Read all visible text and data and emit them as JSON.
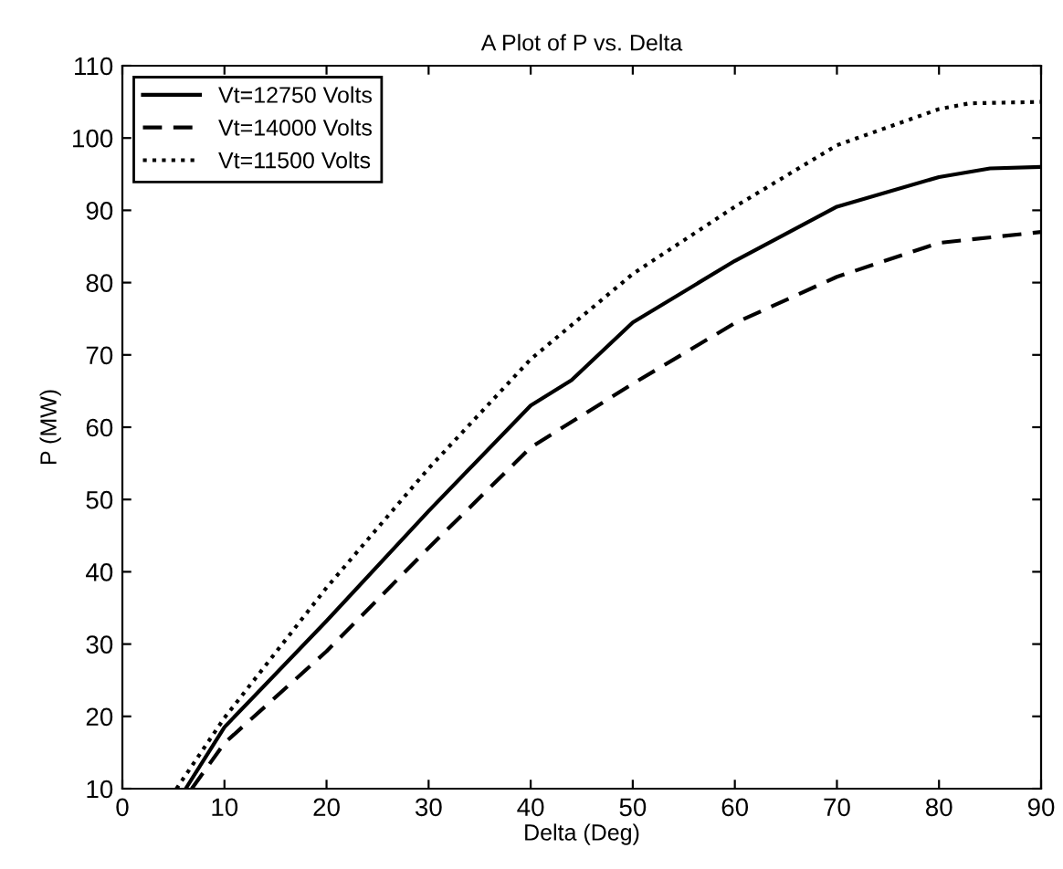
{
  "chart_data": {
    "type": "line",
    "title": "A Plot of P vs. Delta",
    "xlabel": "Delta (Deg)",
    "ylabel": "P (MW)",
    "xlim": [
      0,
      90
    ],
    "xticks": [
      0,
      10,
      20,
      30,
      40,
      50,
      60,
      70,
      80,
      90
    ],
    "ylim": [
      10,
      110
    ],
    "yticks": [
      10,
      20,
      30,
      40,
      50,
      60,
      70,
      80,
      90,
      100,
      110
    ],
    "grid": false,
    "legend": "top left",
    "series": [
      {
        "name": "Vt=12750 Volts",
        "color": "#000000",
        "line_style": "solid",
        "x": [
          6.2,
          10,
          20,
          30,
          40,
          44,
          50,
          60,
          70,
          80,
          85,
          90
        ],
        "values": [
          10,
          18.5,
          33.2,
          48.4,
          63,
          66.5,
          74.5,
          83,
          90.5,
          94.6,
          95.8,
          96
        ]
      },
      {
        "name": "Vt=14000 Volts",
        "color": "#000000",
        "line_style": "dashed",
        "x": [
          6.8,
          10,
          20,
          30,
          40,
          50,
          60,
          70,
          80,
          90
        ],
        "values": [
          10,
          16.3,
          29,
          43.3,
          57.2,
          66,
          74.4,
          80.8,
          85.5,
          87
        ]
      },
      {
        "name": "Vt=11500 Volts",
        "color": "#000000",
        "line_style": "dotted",
        "x": [
          5.3,
          10,
          20,
          30,
          40,
          50,
          60,
          70,
          80,
          83,
          90
        ],
        "values": [
          10,
          19.8,
          37.8,
          54.3,
          69.4,
          81.2,
          90.5,
          99,
          104,
          104.8,
          105
        ]
      }
    ]
  }
}
